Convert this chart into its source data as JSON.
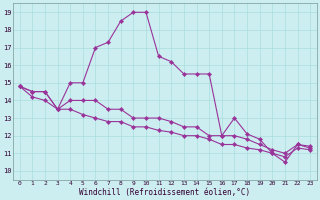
{
  "xlabel": "Windchill (Refroidissement éolien,°C)",
  "xlim": [
    -0.5,
    23.5
  ],
  "ylim": [
    9.5,
    19.5
  ],
  "xticks": [
    0,
    1,
    2,
    3,
    4,
    5,
    6,
    7,
    8,
    9,
    10,
    11,
    12,
    13,
    14,
    15,
    16,
    17,
    18,
    19,
    20,
    21,
    22,
    23
  ],
  "yticks": [
    10,
    11,
    12,
    13,
    14,
    15,
    16,
    17,
    18,
    19
  ],
  "bg_color": "#cceef0",
  "line_color": "#993399",
  "grid_color": "#aadddd",
  "series1": [
    14.8,
    14.5,
    14.5,
    13.5,
    15.0,
    15.0,
    17.0,
    17.3,
    18.5,
    19.0,
    19.0,
    16.5,
    16.2,
    15.5,
    15.5,
    15.5,
    12.0,
    13.0,
    12.1,
    11.8,
    11.0,
    10.5,
    11.5,
    11.4
  ],
  "series2": [
    14.8,
    14.5,
    14.5,
    13.5,
    14.0,
    14.0,
    14.0,
    13.5,
    13.5,
    13.0,
    13.0,
    13.0,
    12.8,
    12.5,
    12.5,
    12.0,
    12.0,
    12.0,
    11.8,
    11.5,
    11.2,
    11.0,
    11.5,
    11.3
  ],
  "series3": [
    14.8,
    14.2,
    14.0,
    13.5,
    13.5,
    13.2,
    13.0,
    12.8,
    12.8,
    12.5,
    12.5,
    12.3,
    12.2,
    12.0,
    12.0,
    11.8,
    11.5,
    11.5,
    11.3,
    11.2,
    11.0,
    10.8,
    11.3,
    11.2
  ]
}
